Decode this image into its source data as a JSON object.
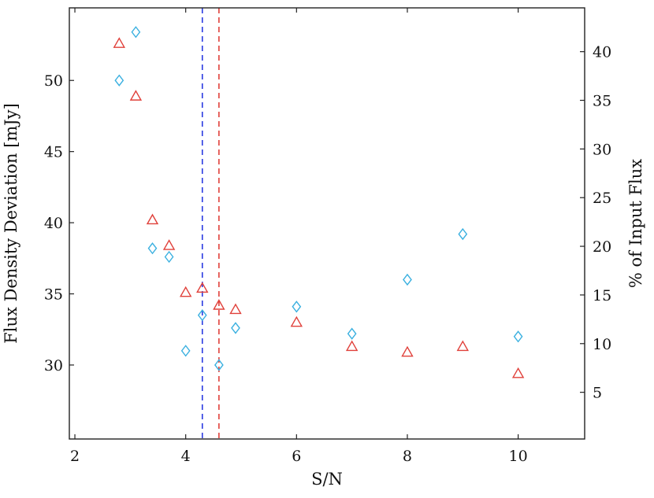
{
  "chart_data": {
    "type": "scatter",
    "xlabel": "S/N",
    "ylabel": "Flux Density Deviation [mJy]",
    "y2label": "% of Input Flux",
    "xlim": [
      1.9,
      11.2
    ],
    "ylim": [
      24.8,
      55.1
    ],
    "y2lim": [
      0.2,
      44.5
    ],
    "x_ticks": [
      "2",
      "4",
      "6",
      "8",
      "10"
    ],
    "y_ticks": [
      "30",
      "35",
      "40",
      "45",
      "50"
    ],
    "y2_ticks": [
      "5",
      "10",
      "15",
      "20",
      "25",
      "30",
      "35",
      "40"
    ],
    "series": [
      {
        "marker": "triangle",
        "color": "#e0403a",
        "axis": "left",
        "x": [
          2.8,
          3.1,
          3.4,
          3.7,
          4.0,
          4.3,
          4.6,
          4.9,
          6.0,
          7.0,
          8.0,
          9.0,
          10.0
        ],
        "y": [
          52.6,
          48.9,
          40.2,
          38.4,
          35.1,
          35.4,
          34.2,
          33.9,
          33.0,
          31.3,
          30.9,
          31.3,
          29.4
        ]
      },
      {
        "marker": "diamond",
        "color": "#3ab0e0",
        "axis": "left",
        "x": [
          2.8,
          3.1,
          3.4,
          3.7,
          4.0,
          4.3,
          4.6,
          4.9,
          6.0,
          7.0,
          8.0,
          9.0,
          10.0
        ],
        "y": [
          50.0,
          53.4,
          38.2,
          37.6,
          31.0,
          33.5,
          30.0,
          32.6,
          34.1,
          32.2,
          36.0,
          39.2,
          32.0
        ]
      }
    ],
    "vlines": [
      {
        "x": 4.3,
        "color": "#2a3ae0",
        "style": "dashed"
      },
      {
        "x": 4.6,
        "color": "#e0403a",
        "style": "dashed"
      }
    ]
  }
}
